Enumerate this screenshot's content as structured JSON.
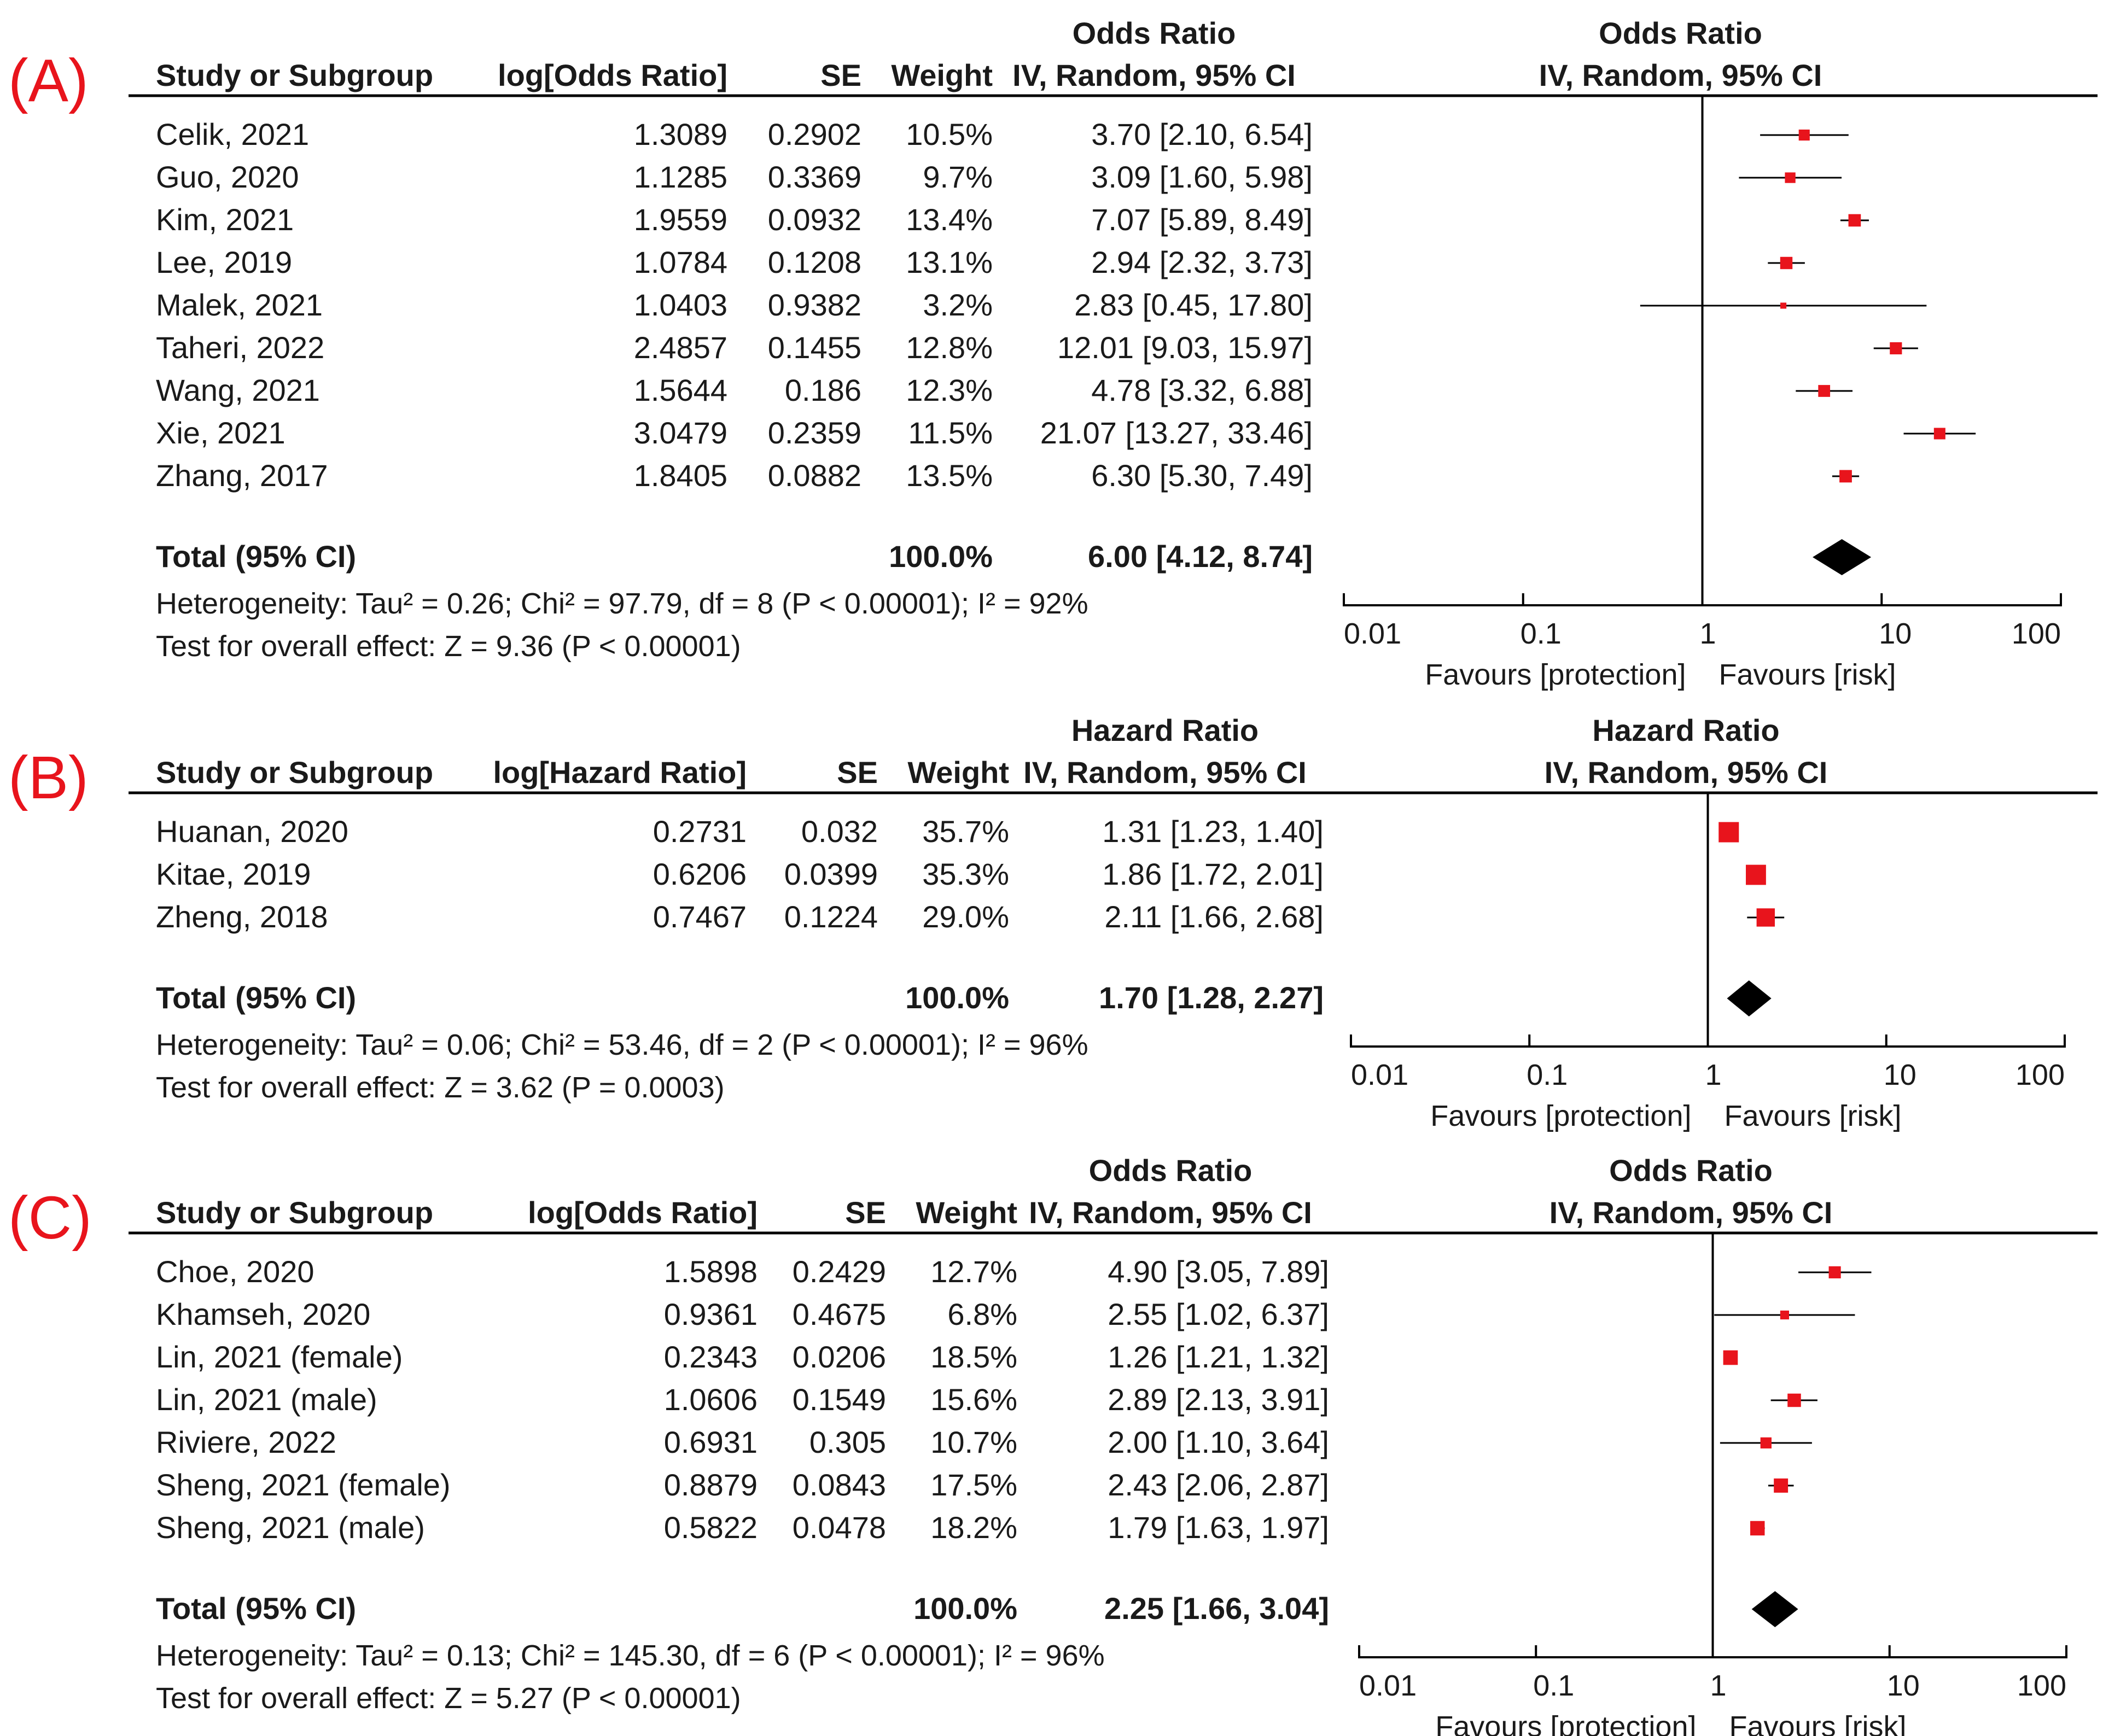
{
  "colors": {
    "panel_label": "#e8141c",
    "marker": "#e8141c",
    "diamond": "#000000",
    "text": "#1a1a1a",
    "rule": "#000000"
  },
  "chart_data": [
    {
      "type": "forest",
      "panel_label": "(A)",
      "measure_title": "Odds Ratio",
      "method": "IV, Random, 95% CI",
      "columns": {
        "study": "Study or Subgroup",
        "estimate": "log[Odds Ratio]",
        "se": "SE",
        "weight": "Weight",
        "ci": "IV, Random, 95% CI"
      },
      "x_scale": "log",
      "xlim": [
        0.01,
        100
      ],
      "ticks": [
        {
          "value": 0.01,
          "label": "0.01"
        },
        {
          "value": 0.1,
          "label": "0.1"
        },
        {
          "value": 1,
          "label": "1"
        },
        {
          "value": 10,
          "label": "10"
        },
        {
          "value": 100,
          "label": "100"
        }
      ],
      "favours_left": "Favours [protection]",
      "favours_right": "Favours [risk]",
      "studies": [
        {
          "name": "Celik, 2021",
          "log_est": "1.3089",
          "se": "0.2902",
          "weight": "10.5%",
          "ci_text": "3.70 [2.10, 6.54]",
          "est": 3.7,
          "lo": 2.1,
          "hi": 6.54,
          "w": 10.5
        },
        {
          "name": "Guo, 2020",
          "log_est": "1.1285",
          "se": "0.3369",
          "weight": "9.7%",
          "ci_text": "3.09 [1.60, 5.98]",
          "est": 3.09,
          "lo": 1.6,
          "hi": 5.98,
          "w": 9.7
        },
        {
          "name": "Kim, 2021",
          "log_est": "1.9559",
          "se": "0.0932",
          "weight": "13.4%",
          "ci_text": "7.07 [5.89, 8.49]",
          "est": 7.07,
          "lo": 5.89,
          "hi": 8.49,
          "w": 13.4
        },
        {
          "name": "Lee, 2019",
          "log_est": "1.0784",
          "se": "0.1208",
          "weight": "13.1%",
          "ci_text": "2.94 [2.32, 3.73]",
          "est": 2.94,
          "lo": 2.32,
          "hi": 3.73,
          "w": 13.1
        },
        {
          "name": "Malek, 2021",
          "log_est": "1.0403",
          "se": "0.9382",
          "weight": "3.2%",
          "ci_text": "2.83 [0.45, 17.80]",
          "est": 2.83,
          "lo": 0.45,
          "hi": 17.8,
          "w": 3.2
        },
        {
          "name": "Taheri, 2022",
          "log_est": "2.4857",
          "se": "0.1455",
          "weight": "12.8%",
          "ci_text": "12.01 [9.03, 15.97]",
          "est": 12.01,
          "lo": 9.03,
          "hi": 15.97,
          "w": 12.8
        },
        {
          "name": "Wang, 2021",
          "log_est": "1.5644",
          "se": "0.186",
          "weight": "12.3%",
          "ci_text": "4.78 [3.32, 6.88]",
          "est": 4.78,
          "lo": 3.32,
          "hi": 6.88,
          "w": 12.3
        },
        {
          "name": "Xie, 2021",
          "log_est": "3.0479",
          "se": "0.2359",
          "weight": "11.5%",
          "ci_text": "21.07 [13.27, 33.46]",
          "est": 21.07,
          "lo": 13.27,
          "hi": 33.46,
          "w": 11.5
        },
        {
          "name": "Zhang, 2017",
          "log_est": "1.8405",
          "se": "0.0882",
          "weight": "13.5%",
          "ci_text": "6.30 [5.30, 7.49]",
          "est": 6.3,
          "lo": 5.3,
          "hi": 7.49,
          "w": 13.5
        }
      ],
      "total": {
        "label": "Total (95% CI)",
        "weight": "100.0%",
        "ci_text": "6.00 [4.12, 8.74]",
        "est": 6.0,
        "lo": 4.12,
        "hi": 8.74
      },
      "heterogeneity": "Heterogeneity: Tau² = 0.26; Chi² = 97.79, df = 8 (P < 0.00001); I² = 92%",
      "overall_effect": "Test for overall effect: Z = 9.36 (P < 0.00001)"
    },
    {
      "type": "forest",
      "panel_label": "(B)",
      "measure_title": "Hazard Ratio",
      "method": "IV, Random, 95% CI",
      "columns": {
        "study": "Study or Subgroup",
        "estimate": "log[Hazard Ratio]",
        "se": "SE",
        "weight": "Weight",
        "ci": "IV, Random, 95% CI"
      },
      "x_scale": "log",
      "xlim": [
        0.01,
        100
      ],
      "ticks": [
        {
          "value": 0.01,
          "label": "0.01"
        },
        {
          "value": 0.1,
          "label": "0.1"
        },
        {
          "value": 1,
          "label": "1"
        },
        {
          "value": 10,
          "label": "10"
        },
        {
          "value": 100,
          "label": "100"
        }
      ],
      "favours_left": "Favours [protection]",
      "favours_right": "Favours [risk]",
      "studies": [
        {
          "name": "Huanan, 2020",
          "log_est": "0.2731",
          "se": "0.032",
          "weight": "35.7%",
          "ci_text": "1.31 [1.23, 1.40]",
          "est": 1.31,
          "lo": 1.23,
          "hi": 1.4,
          "w": 35.7
        },
        {
          "name": "Kitae, 2019",
          "log_est": "0.6206",
          "se": "0.0399",
          "weight": "35.3%",
          "ci_text": "1.86 [1.72, 2.01]",
          "est": 1.86,
          "lo": 1.72,
          "hi": 2.01,
          "w": 35.3
        },
        {
          "name": "Zheng, 2018",
          "log_est": "0.7467",
          "se": "0.1224",
          "weight": "29.0%",
          "ci_text": "2.11 [1.66, 2.68]",
          "est": 2.11,
          "lo": 1.66,
          "hi": 2.68,
          "w": 29.0
        }
      ],
      "total": {
        "label": "Total (95% CI)",
        "weight": "100.0%",
        "ci_text": "1.70 [1.28, 2.27]",
        "est": 1.7,
        "lo": 1.28,
        "hi": 2.27
      },
      "heterogeneity": "Heterogeneity: Tau² = 0.06; Chi² = 53.46, df = 2 (P < 0.00001); I² = 96%",
      "overall_effect": "Test for overall effect: Z = 3.62 (P = 0.0003)"
    },
    {
      "type": "forest",
      "panel_label": "(C)",
      "measure_title": "Odds Ratio",
      "method": "IV, Random, 95% CI",
      "columns": {
        "study": "Study or Subgroup",
        "estimate": "log[Odds Ratio]",
        "se": "SE",
        "weight": "Weight",
        "ci": "IV, Random, 95% CI"
      },
      "x_scale": "log",
      "xlim": [
        0.01,
        100
      ],
      "ticks": [
        {
          "value": 0.01,
          "label": "0.01"
        },
        {
          "value": 0.1,
          "label": "0.1"
        },
        {
          "value": 1,
          "label": "1"
        },
        {
          "value": 10,
          "label": "10"
        },
        {
          "value": 100,
          "label": "100"
        }
      ],
      "favours_left": "Favours [protection]",
      "favours_right": "Favours [risk]",
      "studies": [
        {
          "name": "Choe, 2020",
          "log_est": "1.5898",
          "se": "0.2429",
          "weight": "12.7%",
          "ci_text": "4.90 [3.05, 7.89]",
          "est": 4.9,
          "lo": 3.05,
          "hi": 7.89,
          "w": 12.7
        },
        {
          "name": "Khamseh, 2020",
          "log_est": "0.9361",
          "se": "0.4675",
          "weight": "6.8%",
          "ci_text": "2.55 [1.02, 6.37]",
          "est": 2.55,
          "lo": 1.02,
          "hi": 6.37,
          "w": 6.8
        },
        {
          "name": "Lin, 2021 (female)",
          "log_est": "0.2343",
          "se": "0.0206",
          "weight": "18.5%",
          "ci_text": "1.26 [1.21, 1.32]",
          "est": 1.26,
          "lo": 1.21,
          "hi": 1.32,
          "w": 18.5
        },
        {
          "name": "Lin, 2021 (male)",
          "log_est": "1.0606",
          "se": "0.1549",
          "weight": "15.6%",
          "ci_text": "2.89 [2.13, 3.91]",
          "est": 2.89,
          "lo": 2.13,
          "hi": 3.91,
          "w": 15.6
        },
        {
          "name": "Riviere, 2022",
          "log_est": "0.6931",
          "se": "0.305",
          "weight": "10.7%",
          "ci_text": "2.00 [1.10, 3.64]",
          "est": 2.0,
          "lo": 1.1,
          "hi": 3.64,
          "w": 10.7
        },
        {
          "name": "Sheng, 2021 (female)",
          "log_est": "0.8879",
          "se": "0.0843",
          "weight": "17.5%",
          "ci_text": "2.43 [2.06, 2.87]",
          "est": 2.43,
          "lo": 2.06,
          "hi": 2.87,
          "w": 17.5
        },
        {
          "name": "Sheng, 2021 (male)",
          "log_est": "0.5822",
          "se": "0.0478",
          "weight": "18.2%",
          "ci_text": "1.79 [1.63, 1.97]",
          "est": 1.79,
          "lo": 1.63,
          "hi": 1.97,
          "w": 18.2
        }
      ],
      "total": {
        "label": "Total (95% CI)",
        "weight": "100.0%",
        "ci_text": "2.25 [1.66, 3.04]",
        "est": 2.25,
        "lo": 1.66,
        "hi": 3.04
      },
      "heterogeneity": "Heterogeneity: Tau² = 0.13; Chi² = 145.30, df = 6 (P < 0.00001); I² = 96%",
      "overall_effect": "Test for overall effect: Z = 5.27 (P < 0.00001)"
    }
  ]
}
